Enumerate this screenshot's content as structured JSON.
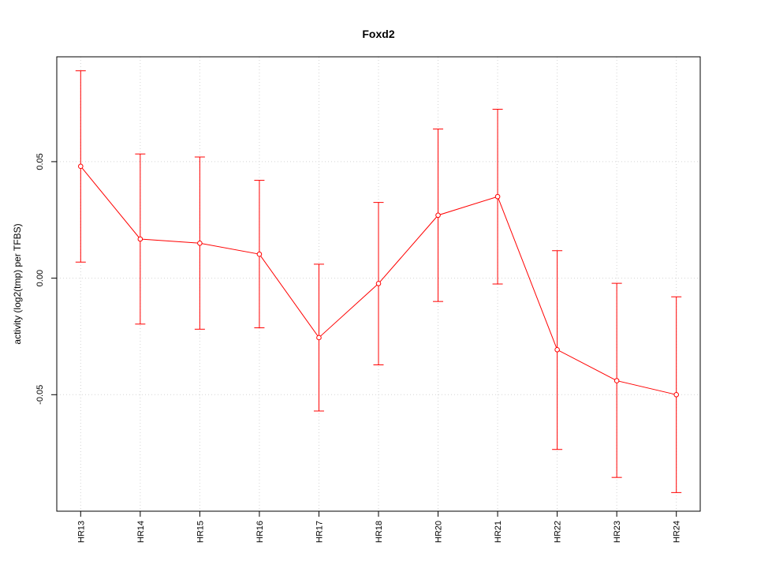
{
  "chart_data": {
    "type": "line",
    "title": "Foxd2",
    "ylabel": "activity (log2(tmp) per TFBS)",
    "xlabel": "",
    "categories": [
      "HR13",
      "HR14",
      "HR15",
      "HR16",
      "HR17",
      "HR18",
      "HR20",
      "HR21",
      "HR22",
      "HR23",
      "HR24"
    ],
    "values": [
      0.048,
      0.0168,
      0.015,
      0.0103,
      -0.0255,
      -0.0023,
      0.027,
      0.035,
      -0.0307,
      -0.044,
      -0.05
    ],
    "error_lower": [
      0.0069,
      -0.0197,
      -0.0219,
      -0.0213,
      -0.057,
      -0.0372,
      -0.01,
      -0.0025,
      -0.0735,
      -0.0855,
      -0.092
    ],
    "error_upper": [
      0.089,
      0.0533,
      0.052,
      0.042,
      0.006,
      0.0325,
      0.064,
      0.0725,
      0.0118,
      -0.0022,
      -0.008
    ],
    "yticks": [
      -0.05,
      0.0,
      0.05
    ],
    "ytick_labels": [
      "-0.05",
      "0.00",
      "0.05"
    ],
    "ylim": [
      -0.1,
      0.095
    ],
    "grid": true,
    "color": "#ff0000"
  }
}
